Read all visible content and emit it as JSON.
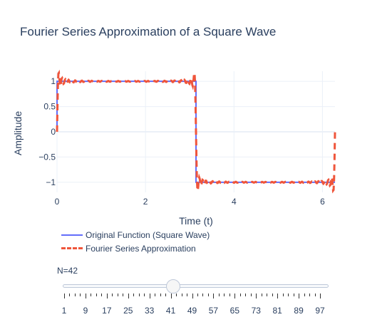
{
  "chart_data": {
    "type": "line",
    "title": "Fourier Series Approximation of a Square Wave",
    "xlabel": "Time (t)",
    "ylabel": "Amplitude",
    "xlim": [
      0,
      6.283
    ],
    "ylim": [
      -1.2,
      1.2
    ],
    "x_ticks": [
      0,
      2,
      4,
      6
    ],
    "y_ticks": [
      1,
      0.5,
      0,
      -0.5,
      -1
    ],
    "x_tick_labels": [
      "0",
      "2",
      "4",
      "6"
    ],
    "y_tick_labels": [
      "1",
      "0.5",
      "0",
      "−0.5",
      "−1"
    ],
    "grid": true,
    "series": [
      {
        "name": "Original Function (Square Wave)",
        "style": "solid",
        "color": "#636efa",
        "x": [
          0,
          0.001,
          3.1415,
          3.1416,
          6.2832
        ],
        "y": [
          0,
          1,
          1,
          -1,
          -1
        ]
      },
      {
        "name": "Fourier Series Approximation",
        "style": "dashed",
        "color": "#ef553b",
        "terms": 42
      }
    ]
  },
  "slider": {
    "label": "N=42",
    "value": 42,
    "min": 1,
    "max": 100,
    "tick_labels": [
      "1",
      "9",
      "17",
      "25",
      "33",
      "41",
      "49",
      "57",
      "65",
      "73",
      "81",
      "89",
      "97"
    ]
  }
}
